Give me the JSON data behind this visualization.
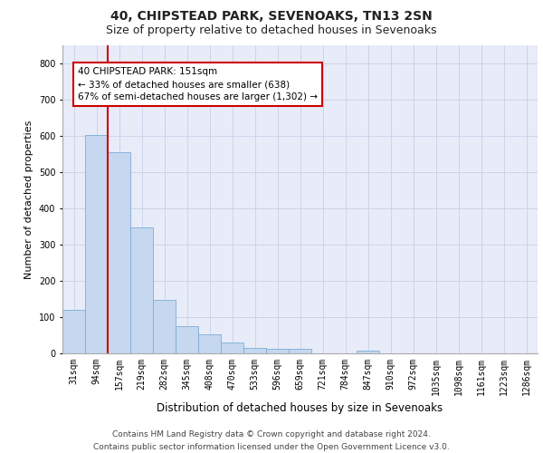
{
  "title1": "40, CHIPSTEAD PARK, SEVENOAKS, TN13 2SN",
  "title2": "Size of property relative to detached houses in Sevenoaks",
  "xlabel": "Distribution of detached houses by size in Sevenoaks",
  "ylabel": "Number of detached properties",
  "categories": [
    "31sqm",
    "94sqm",
    "157sqm",
    "219sqm",
    "282sqm",
    "345sqm",
    "408sqm",
    "470sqm",
    "533sqm",
    "596sqm",
    "659sqm",
    "721sqm",
    "784sqm",
    "847sqm",
    "910sqm",
    "972sqm",
    "1035sqm",
    "1098sqm",
    "1161sqm",
    "1223sqm",
    "1286sqm"
  ],
  "values": [
    120,
    602,
    555,
    348,
    148,
    76,
    52,
    30,
    14,
    12,
    12,
    0,
    0,
    8,
    0,
    0,
    0,
    0,
    0,
    0,
    0
  ],
  "bar_color": "#c5d8ef",
  "bar_edgecolor": "#7aadd4",
  "grid_color": "#c8d0e8",
  "background_color": "#e8ecf8",
  "vline_color": "#cc0000",
  "vline_x": 1.5,
  "annotation_text": "40 CHIPSTEAD PARK: 151sqm\n← 33% of detached houses are smaller (638)\n67% of semi-detached houses are larger (1,302) →",
  "annotation_box_color": "#cc0000",
  "ylim": [
    0,
    850
  ],
  "yticks": [
    0,
    100,
    200,
    300,
    400,
    500,
    600,
    700,
    800
  ],
  "footer": "Contains HM Land Registry data © Crown copyright and database right 2024.\nContains public sector information licensed under the Open Government Licence v3.0.",
  "title1_fontsize": 10,
  "title2_fontsize": 9,
  "xlabel_fontsize": 8.5,
  "ylabel_fontsize": 8,
  "tick_fontsize": 7,
  "annotation_fontsize": 7.5,
  "footer_fontsize": 6.5
}
